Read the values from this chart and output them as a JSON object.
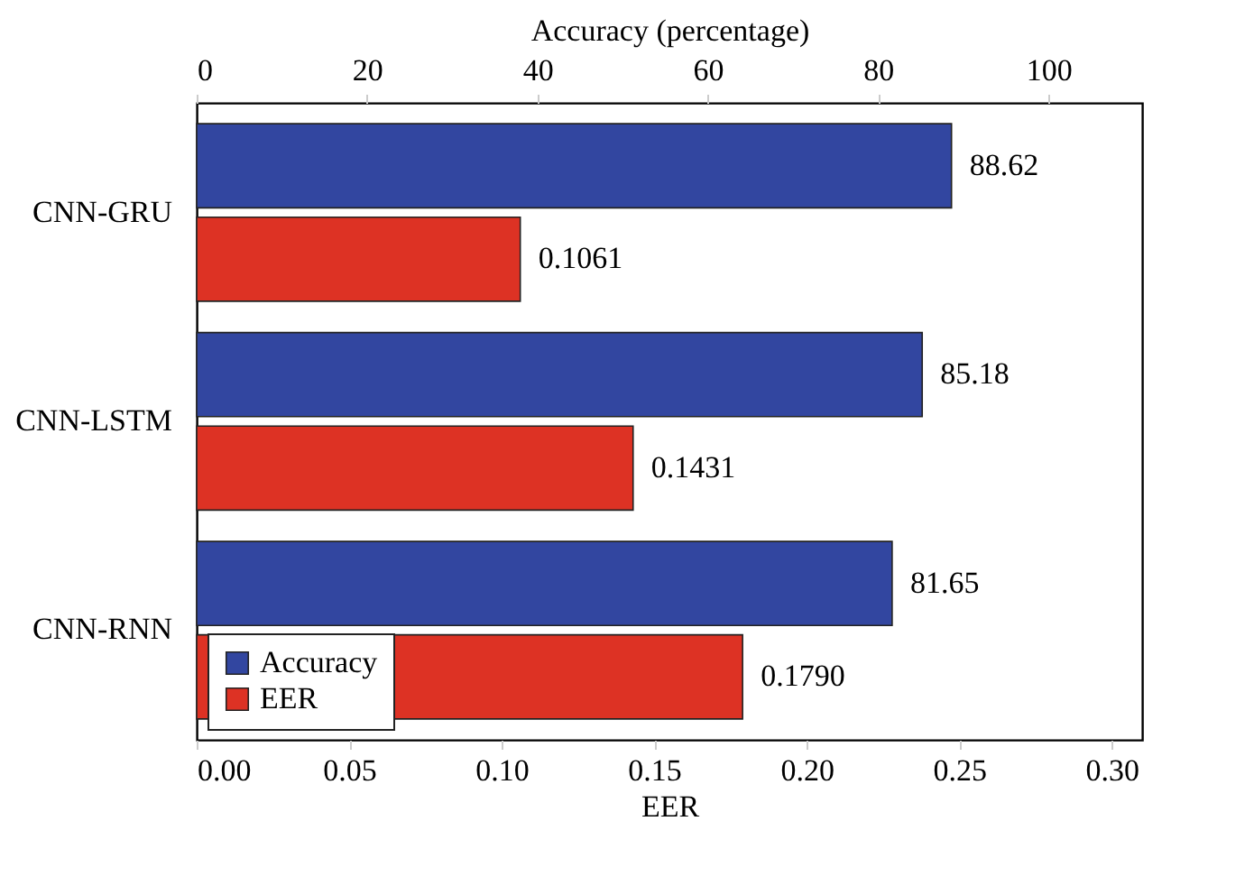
{
  "chart_data": {
    "type": "bar",
    "orientation": "horizontal",
    "categories": [
      "CNN-GRU",
      "CNN-LSTM",
      "CNN-RNN"
    ],
    "series": [
      {
        "name": "Accuracy",
        "color": "#3246a0",
        "axis": "x2",
        "values": [
          88.62,
          85.18,
          81.65
        ],
        "value_labels": [
          "88.62",
          "85.18",
          "81.65"
        ]
      },
      {
        "name": "EER",
        "color": "#dd3224",
        "values": [
          0.1061,
          0.1431,
          0.179
        ],
        "value_labels": [
          "0.1061",
          "0.1431",
          "0.1790"
        ]
      }
    ],
    "xlabel": "EER",
    "x2label": "Accuracy (percentage)",
    "xlim": [
      0,
      0.31
    ],
    "xticks": [
      {
        "value": 0,
        "label": "0.00"
      },
      0.05,
      {
        "value": 0.1,
        "label": "0.10"
      },
      0.15,
      {
        "value": 0.2,
        "label": "0.20"
      },
      0.25,
      {
        "value": 0.3,
        "label": "0.30"
      }
    ],
    "x2lim": [
      0,
      111
    ],
    "x2ticks": [
      0,
      20,
      40,
      60,
      80,
      100
    ],
    "legend": "bottom left"
  }
}
